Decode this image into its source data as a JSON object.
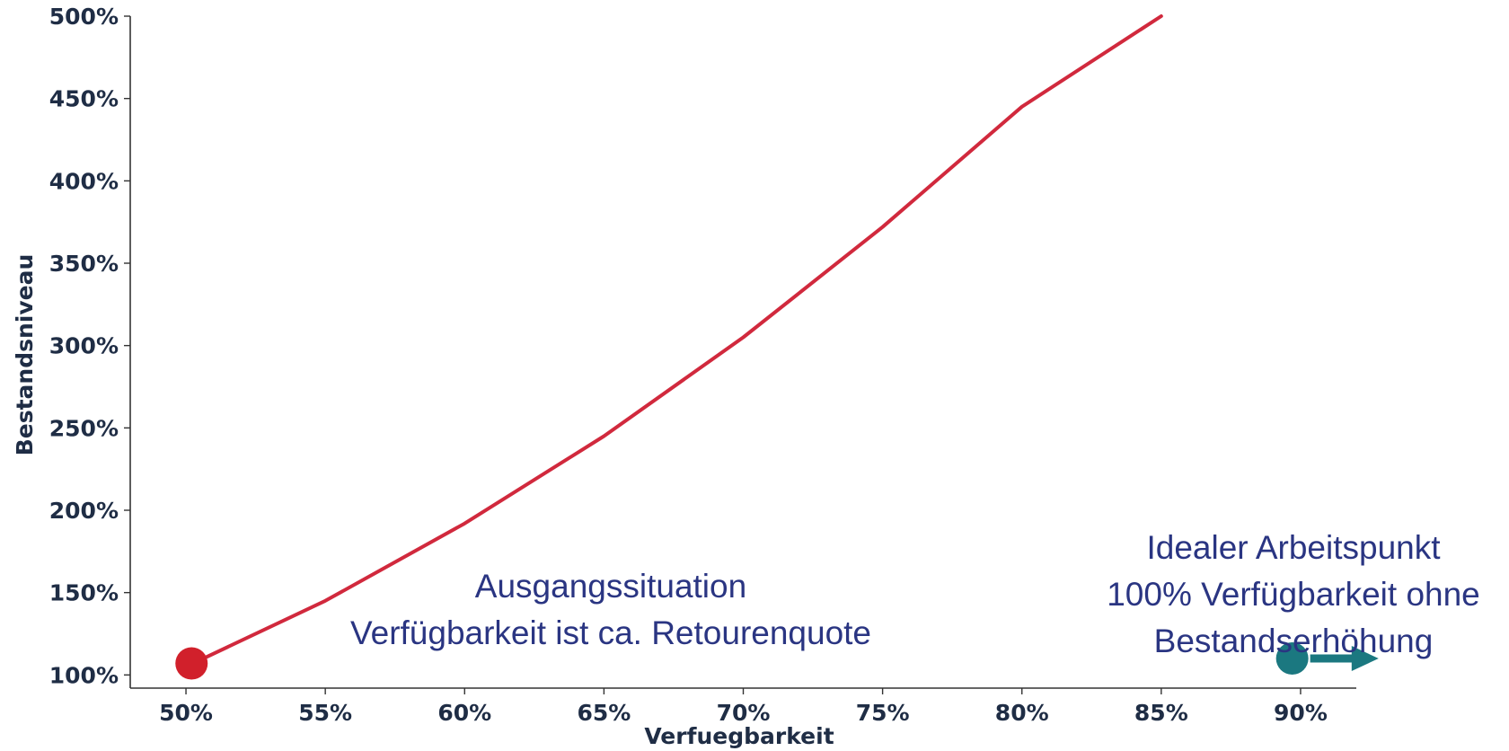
{
  "chart_data": {
    "type": "line",
    "title": "",
    "xlabel": "Verfuegbarkeit",
    "ylabel": "Bestandsniveau",
    "xlim": [
      0.48,
      0.92
    ],
    "ylim": [
      0.92,
      5.0
    ],
    "xticks": [
      0.5,
      0.55,
      0.6,
      0.65,
      0.7,
      0.75,
      0.8,
      0.85,
      0.9
    ],
    "xtick_labels": [
      "50%",
      "55%",
      "60%",
      "65%",
      "70%",
      "75%",
      "80%",
      "85%",
      "90%"
    ],
    "yticks": [
      1.0,
      1.5,
      2.0,
      2.5,
      3.0,
      3.5,
      4.0,
      4.5,
      5.0
    ],
    "ytick_labels": [
      "100%",
      "150%",
      "200%",
      "250%",
      "300%",
      "350%",
      "400%",
      "450%",
      "500%"
    ],
    "grid": false,
    "series": [
      {
        "color": "#d1293d",
        "x": [
          0.5,
          0.55,
          0.6,
          0.65,
          0.7,
          0.75,
          0.8,
          0.85
        ],
        "y": [
          1.05,
          1.45,
          1.92,
          2.45,
          3.05,
          3.72,
          4.45,
          5.0
        ]
      }
    ],
    "markers": [
      {
        "x": 0.502,
        "y": 1.07,
        "color": "#d1202b"
      },
      {
        "x": 0.897,
        "y": 1.1,
        "color": "#1b7880",
        "arrow_to_x": 0.928
      }
    ],
    "annotations": [
      {
        "lines": [
          "Ausgangssituation",
          "Verfügbarkeit ist ca. Retourenquote"
        ]
      },
      {
        "lines": [
          "Idealer Arbeitspunkt",
          "100% Verfügbarkeit ohne",
          "Bestandserhöhung"
        ]
      }
    ]
  }
}
